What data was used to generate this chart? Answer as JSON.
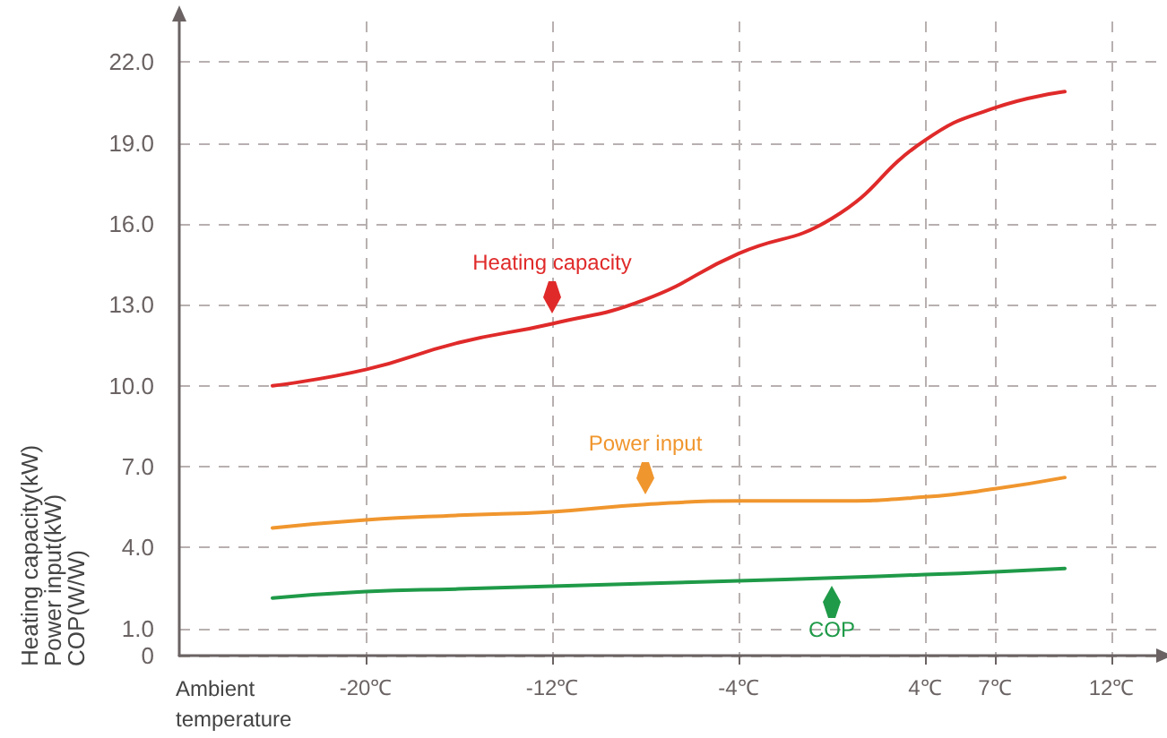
{
  "chart_data": {
    "type": "line",
    "xlabel": "Ambient\ntemperature",
    "ylabel": "Heating capacity(kW)\nPower input(kW)\nCOP(W/W)",
    "x": [
      -24,
      -20,
      -16,
      -12,
      -8,
      -4,
      0,
      4,
      7,
      10
    ],
    "series": [
      {
        "name": "Heating capacity",
        "color": "#e02a2a",
        "values": [
          10.0,
          10.6,
          11.6,
          12.3,
          13.2,
          14.9,
          16.2,
          19.1,
          20.3,
          20.9
        ]
      },
      {
        "name": "Power input",
        "color": "#f0962e",
        "values": [
          4.73,
          5.03,
          5.2,
          5.33,
          5.6,
          5.73,
          5.73,
          5.88,
          6.18,
          6.6
        ]
      },
      {
        "name": "COP",
        "color": "#1f9a48",
        "values": [
          2.13,
          2.37,
          2.47,
          2.57,
          2.67,
          2.77,
          2.88,
          3.0,
          3.1,
          3.23
        ]
      }
    ],
    "xlim": [
      -28,
      14
    ],
    "xticks": [
      {
        "value": -20,
        "label": "-20℃"
      },
      {
        "value": -12,
        "label": "-12℃"
      },
      {
        "value": -4,
        "label": "-4℃"
      },
      {
        "value": 4,
        "label": "4℃"
      },
      {
        "value": 7,
        "label": "7℃"
      },
      {
        "value": 12,
        "label": "12℃"
      }
    ],
    "ylim": [
      0,
      23.5
    ],
    "yticks": [
      0,
      {
        "value": 1,
        "label": "1.0"
      },
      {
        "value": 4,
        "label": "4.0"
      },
      {
        "value": 7,
        "label": "7.0"
      },
      {
        "value": 10,
        "label": "10.0"
      },
      {
        "value": 13,
        "label": "13.0"
      },
      {
        "value": 16,
        "label": "16.0"
      },
      {
        "value": 19,
        "label": "19.0"
      },
      {
        "value": 22,
        "label": "22.0"
      }
    ],
    "grid": true,
    "marker": "none",
    "line_style": "solid"
  }
}
